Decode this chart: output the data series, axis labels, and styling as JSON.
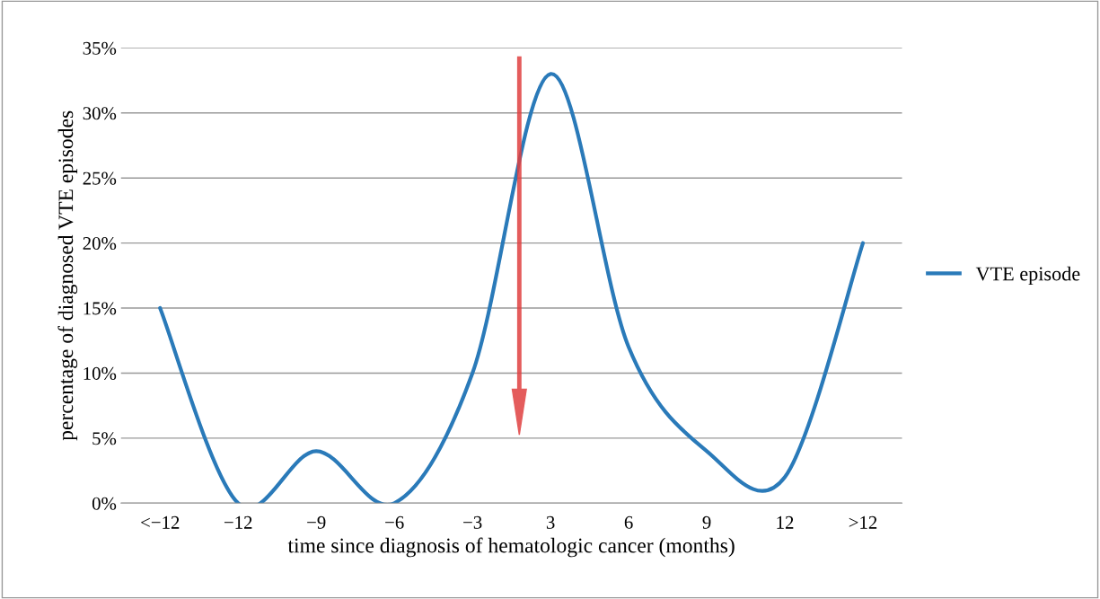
{
  "chart_data": {
    "type": "line",
    "xlabel": "time since diagnosis of hematologic cancer (months)",
    "ylabel": "percentage of diagnosed VTE episodes",
    "categories": [
      "<−12",
      "−12",
      "−9",
      "−6",
      "−3",
      "3",
      "6",
      "9",
      "12",
      ">12"
    ],
    "series": [
      {
        "name": "VTE episode",
        "color": "#2a7ab9",
        "values": [
          15,
          0,
          4,
          0,
          10,
          33,
          12,
          4,
          2,
          20
        ]
      }
    ],
    "ylim": [
      0,
      35
    ],
    "yticks": [
      {
        "value": 0,
        "label": "0%"
      },
      {
        "value": 5,
        "label": "5%"
      },
      {
        "value": 10,
        "label": "10%"
      },
      {
        "value": 15,
        "label": "15%"
      },
      {
        "value": 20,
        "label": "20%"
      },
      {
        "value": 25,
        "label": "25%"
      },
      {
        "value": 30,
        "label": "30%"
      },
      {
        "value": 35,
        "label": "35%"
      }
    ],
    "grid": "y",
    "legend": "right",
    "marker": "none",
    "line_style": "solid"
  }
}
